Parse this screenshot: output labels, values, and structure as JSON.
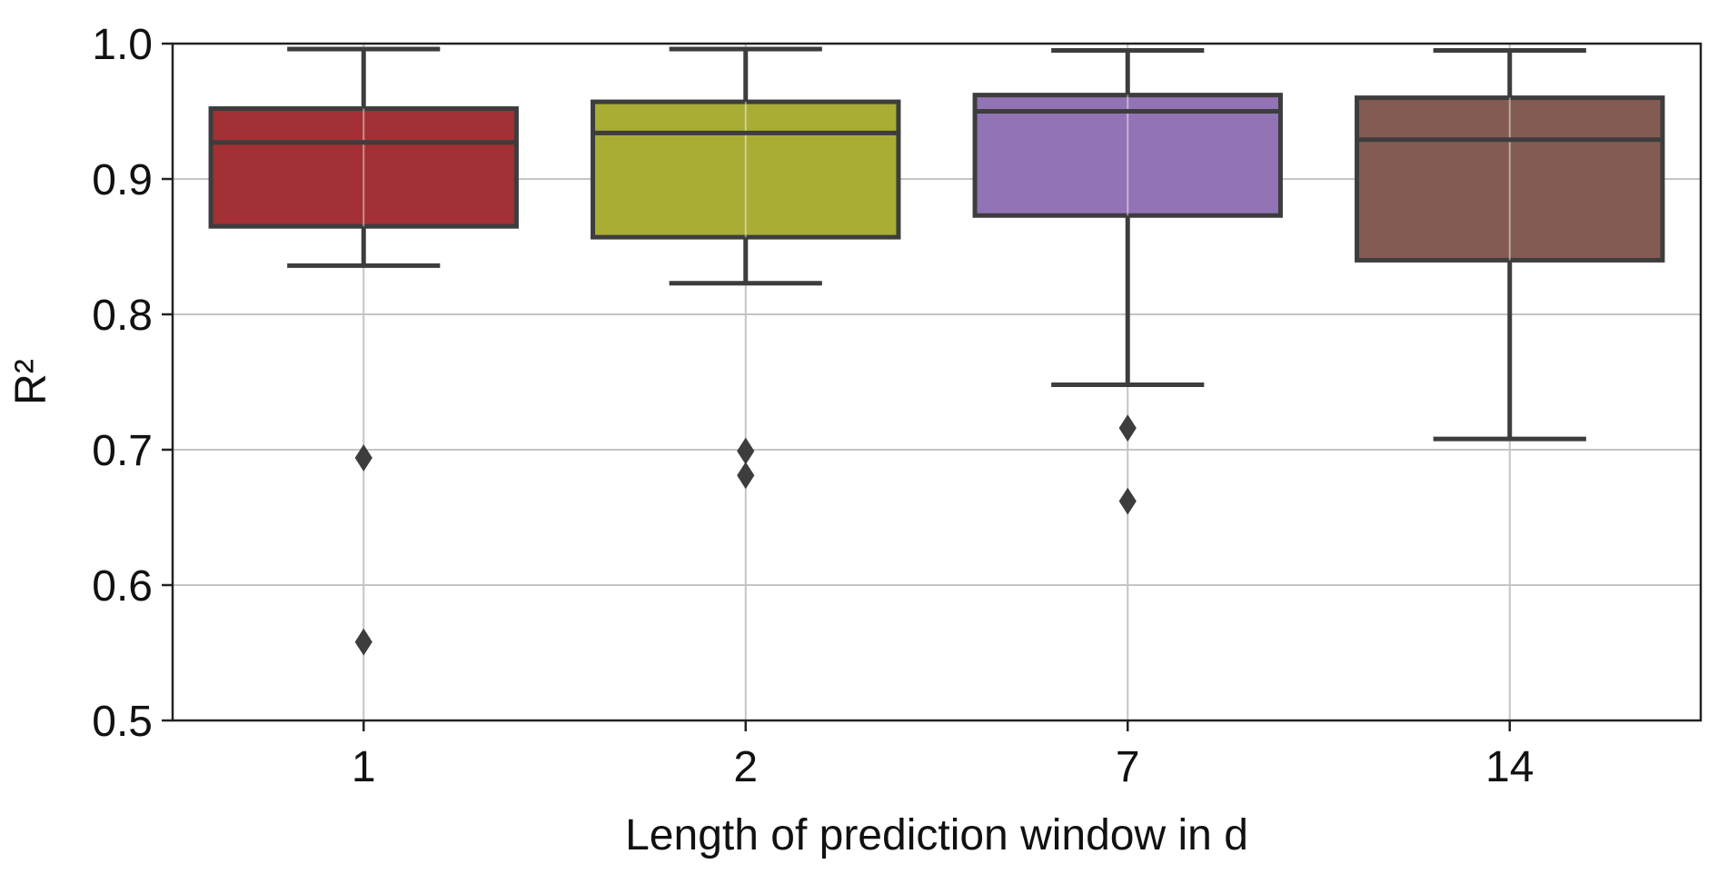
{
  "chart_data": {
    "type": "box",
    "title": "",
    "xlabel": "Length of prediction window in d",
    "ylabel": "R²",
    "categories": [
      "1",
      "2",
      "7",
      "14"
    ],
    "ylim": [
      0.5,
      1.0
    ],
    "yticks": [
      "0.5",
      "0.6",
      "0.7",
      "0.8",
      "0.9",
      "1.0"
    ],
    "grid": true,
    "legend": "none",
    "series": [
      {
        "category": "1",
        "color": "#a33034",
        "whisker_low": 0.836,
        "q1": 0.865,
        "median": 0.927,
        "q3": 0.952,
        "whisker_high": 0.996,
        "outliers": [
          0.694,
          0.558
        ]
      },
      {
        "category": "2",
        "color": "#a9ad34",
        "whisker_low": 0.823,
        "q1": 0.857,
        "median": 0.934,
        "q3": 0.957,
        "whisker_high": 0.996,
        "outliers": [
          0.699,
          0.681
        ]
      },
      {
        "category": "7",
        "color": "#9273b5",
        "whisker_low": 0.748,
        "q1": 0.873,
        "median": 0.95,
        "q3": 0.962,
        "whisker_high": 0.995,
        "outliers": [
          0.716,
          0.662
        ]
      },
      {
        "category": "14",
        "color": "#845b53",
        "whisker_low": 0.708,
        "q1": 0.84,
        "median": 0.929,
        "q3": 0.96,
        "whisker_high": 0.995,
        "outliers": []
      }
    ]
  }
}
